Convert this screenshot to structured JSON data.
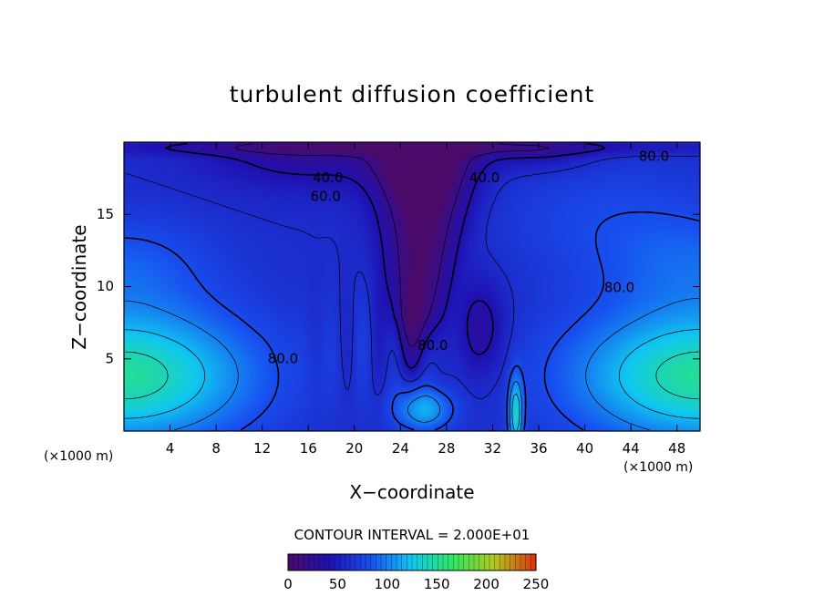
{
  "chart_data": {
    "type": "heatmap",
    "title": "turbulent diffusion coefficient",
    "xlabel": "X−coordinate",
    "ylabel": "Z−coordinate",
    "x_unit_left": "(×1000 m)",
    "x_unit_right": "(×1000 m)",
    "xlim": [
      0,
      50
    ],
    "ylim": [
      0,
      20
    ],
    "x_ticks": [
      4,
      8,
      12,
      16,
      20,
      24,
      28,
      32,
      36,
      40,
      44,
      48
    ],
    "y_ticks": [
      5,
      10,
      15
    ],
    "contour_interval_text": "CONTOUR INTERVAL = 2.000E+01",
    "contour_labels": [
      {
        "text": "40.0",
        "x": 17.7,
        "z": 17.5
      },
      {
        "text": "60.0",
        "x": 17.5,
        "z": 16.2
      },
      {
        "text": "40.0",
        "x": 31.3,
        "z": 17.5
      },
      {
        "text": "80.0",
        "x": 46.0,
        "z": 19.0
      },
      {
        "text": "80.0",
        "x": 43.0,
        "z": 9.9
      },
      {
        "text": "80.0",
        "x": 13.8,
        "z": 5.0
      },
      {
        "text": "80.0",
        "x": 26.8,
        "z": 5.9
      }
    ],
    "colorbar": {
      "min": 0,
      "max": 250,
      "tick_labels": [
        "0",
        "50",
        "100",
        "150",
        "200",
        "250"
      ],
      "colors": [
        "#4a0a6a",
        "#2010b0",
        "#1850f0",
        "#10c8f0",
        "#30e860",
        "#b0c820",
        "#e03010"
      ]
    },
    "field_summary": {
      "low_core_center_x": 25.5,
      "low_core_value": 0,
      "high_cores": [
        {
          "x": 0,
          "z": 3.8,
          "value": 150
        },
        {
          "x": 50,
          "z": 3.8,
          "value": 150
        }
      ],
      "low_pocket": {
        "x": 31,
        "z": 7,
        "value": 40
      }
    }
  }
}
